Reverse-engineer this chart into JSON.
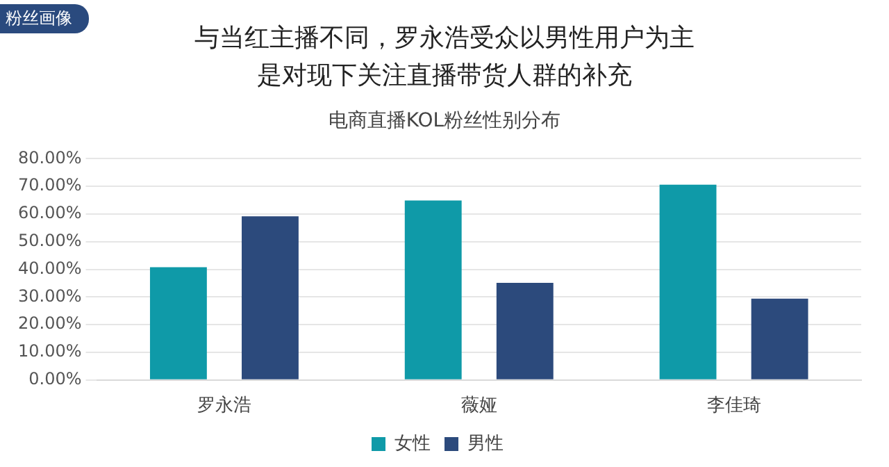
{
  "chart_data": {
    "type": "bar",
    "title": "与当红主播不同，罗永浩受众以男性用户为主是对现下关注直播带货人群的补充",
    "subtitle": "电商直播KOL粉丝性别分布",
    "annotations": [
      "粉丝画像"
    ],
    "categories": [
      "罗永浩",
      "薇娅",
      "李佳琦"
    ],
    "series": [
      {
        "name": "女性",
        "color": "#0f9aa8",
        "values": [
          40.8,
          64.9,
          70.6
        ]
      },
      {
        "name": "男性",
        "color": "#2c4a7c",
        "values": [
          59.2,
          35.1,
          29.4
        ]
      }
    ],
    "ylim": [
      0,
      80
    ],
    "yticks": [
      {
        "value": 0,
        "label": "0.00%"
      },
      {
        "value": 10,
        "label": "10.00%"
      },
      {
        "value": 20,
        "label": "20.00%"
      },
      {
        "value": 30,
        "label": "30.00%"
      },
      {
        "value": 40,
        "label": "40.00%"
      },
      {
        "value": 50,
        "label": "50.00%"
      },
      {
        "value": 60,
        "label": "60.00%"
      },
      {
        "value": 70,
        "label": "70.00%"
      },
      {
        "value": 80,
        "label": "80.00%"
      }
    ],
    "grid": "y",
    "legend": "bottom"
  }
}
